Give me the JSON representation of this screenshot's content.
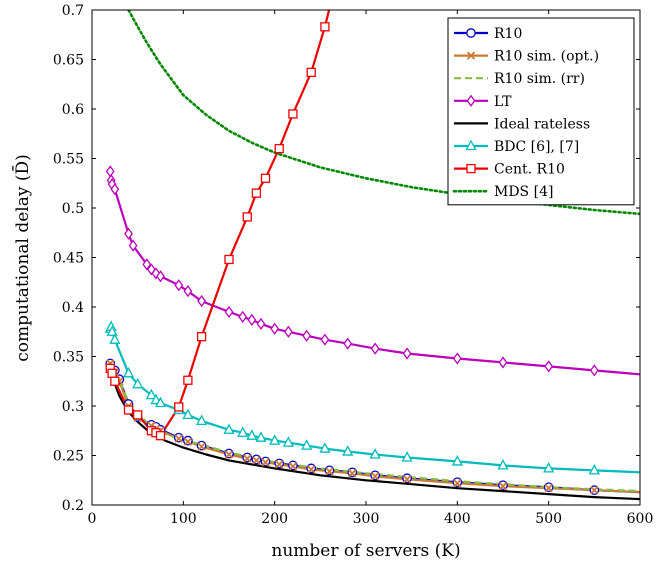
{
  "chart_data": {
    "type": "line",
    "xlabel": "number of servers (K)",
    "ylabel": "computational delay (D̄)",
    "xlim": [
      0,
      600
    ],
    "ylim": [
      0.2,
      0.7
    ],
    "x_ticks": [
      "0",
      "100",
      "200",
      "300",
      "400",
      "500",
      "600"
    ],
    "y_ticks": [
      "0.2",
      "0.25",
      "0.3",
      "0.35",
      "0.4",
      "0.45",
      "0.5",
      "0.55",
      "0.6",
      "0.65",
      "0.7"
    ],
    "grid": false,
    "legend_position": "top-right",
    "series": [
      {
        "name": "R10",
        "color": "#0000cc",
        "marker": "circle",
        "dash": "solid",
        "x": [
          20,
          25,
          30,
          40,
          50,
          65,
          70,
          75,
          95,
          105,
          120,
          150,
          170,
          180,
          190,
          205,
          220,
          240,
          260,
          285,
          310,
          345,
          400,
          450,
          500,
          550,
          600
        ],
        "y": [
          0.343,
          0.336,
          0.327,
          0.302,
          0.289,
          0.281,
          0.279,
          0.276,
          0.268,
          0.265,
          0.26,
          0.252,
          0.248,
          0.246,
          0.244,
          0.242,
          0.24,
          0.237,
          0.235,
          0.233,
          0.23,
          0.227,
          0.223,
          0.22,
          0.218,
          0.215,
          0.213
        ]
      },
      {
        "name": "R10 sim. (opt.)",
        "color": "#cc7a33",
        "marker": "cross",
        "dash": "solid",
        "x": [
          20,
          25,
          30,
          40,
          50,
          65,
          70,
          75,
          95,
          105,
          120,
          150,
          170,
          180,
          190,
          205,
          220,
          240,
          260,
          285,
          310,
          345,
          400,
          450,
          500,
          550,
          600
        ],
        "y": [
          0.343,
          0.334,
          0.325,
          0.3,
          0.288,
          0.28,
          0.277,
          0.275,
          0.267,
          0.264,
          0.259,
          0.251,
          0.247,
          0.245,
          0.243,
          0.241,
          0.239,
          0.236,
          0.234,
          0.232,
          0.229,
          0.226,
          0.222,
          0.219,
          0.217,
          0.215,
          0.213
        ]
      },
      {
        "name": "R10 sim. (rr)",
        "color": "#88bb44",
        "marker": "none",
        "dash": "dashed",
        "x": [
          20,
          30,
          40,
          60,
          80,
          100,
          150,
          200,
          250,
          300,
          350,
          400,
          450,
          500,
          550,
          600
        ],
        "y": [
          0.344,
          0.326,
          0.304,
          0.283,
          0.272,
          0.266,
          0.253,
          0.243,
          0.237,
          0.232,
          0.228,
          0.224,
          0.221,
          0.218,
          0.216,
          0.214
        ]
      },
      {
        "name": "LT",
        "color": "#bb00bb",
        "marker": "diamond",
        "dash": "solid",
        "x": [
          20,
          21,
          22,
          25,
          40,
          45,
          60,
          65,
          70,
          75,
          95,
          105,
          120,
          150,
          165,
          175,
          185,
          200,
          215,
          235,
          255,
          280,
          310,
          345,
          400,
          450,
          500,
          550,
          600
        ],
        "y": [
          0.537,
          0.528,
          0.524,
          0.519,
          0.474,
          0.462,
          0.443,
          0.438,
          0.434,
          0.431,
          0.422,
          0.416,
          0.406,
          0.395,
          0.39,
          0.387,
          0.383,
          0.378,
          0.375,
          0.371,
          0.367,
          0.363,
          0.358,
          0.353,
          0.348,
          0.344,
          0.34,
          0.336,
          0.332
        ]
      },
      {
        "name": "Ideal rateless",
        "color": "#000000",
        "marker": "none",
        "dash": "solid",
        "x": [
          20,
          30,
          40,
          50,
          60,
          80,
          100,
          125,
          150,
          200,
          250,
          300,
          350,
          400,
          450,
          500,
          550,
          600
        ],
        "y": [
          0.335,
          0.31,
          0.294,
          0.284,
          0.276,
          0.265,
          0.258,
          0.251,
          0.245,
          0.237,
          0.23,
          0.225,
          0.221,
          0.217,
          0.214,
          0.211,
          0.208,
          0.206
        ]
      },
      {
        "name": "BDC [6], [7]",
        "color": "#00bbbb",
        "marker": "triangle",
        "dash": "solid",
        "x": [
          20,
          21,
          22,
          25,
          40,
          50,
          65,
          70,
          75,
          95,
          105,
          120,
          150,
          165,
          175,
          185,
          200,
          215,
          235,
          255,
          280,
          310,
          345,
          400,
          450,
          500,
          550,
          600
        ],
        "y": [
          0.378,
          0.38,
          0.375,
          0.367,
          0.333,
          0.322,
          0.311,
          0.306,
          0.303,
          0.296,
          0.291,
          0.285,
          0.276,
          0.273,
          0.27,
          0.268,
          0.265,
          0.263,
          0.26,
          0.257,
          0.254,
          0.251,
          0.248,
          0.244,
          0.24,
          0.237,
          0.235,
          0.233
        ]
      },
      {
        "name": "Cent. R10",
        "color": "#ee0000",
        "marker": "square",
        "dash": "solid",
        "x": [
          20,
          22,
          25,
          40,
          50,
          65,
          70,
          75,
          95,
          105,
          120,
          150,
          170,
          180,
          190,
          205,
          220,
          240,
          255,
          265
        ],
        "y": [
          0.338,
          0.333,
          0.325,
          0.296,
          0.291,
          0.275,
          0.273,
          0.27,
          0.299,
          0.326,
          0.37,
          0.448,
          0.491,
          0.515,
          0.53,
          0.56,
          0.595,
          0.637,
          0.683,
          0.72
        ]
      },
      {
        "name": "MDS [4]",
        "color": "#008800",
        "marker": "none",
        "dash": "dotted",
        "x": [
          40,
          50,
          60,
          75,
          100,
          125,
          150,
          175,
          200,
          250,
          300,
          350,
          400,
          450,
          500,
          550,
          600
        ],
        "y": [
          0.7,
          0.683,
          0.667,
          0.645,
          0.614,
          0.594,
          0.578,
          0.566,
          0.556,
          0.541,
          0.53,
          0.521,
          0.514,
          0.508,
          0.503,
          0.498,
          0.494
        ]
      }
    ]
  }
}
